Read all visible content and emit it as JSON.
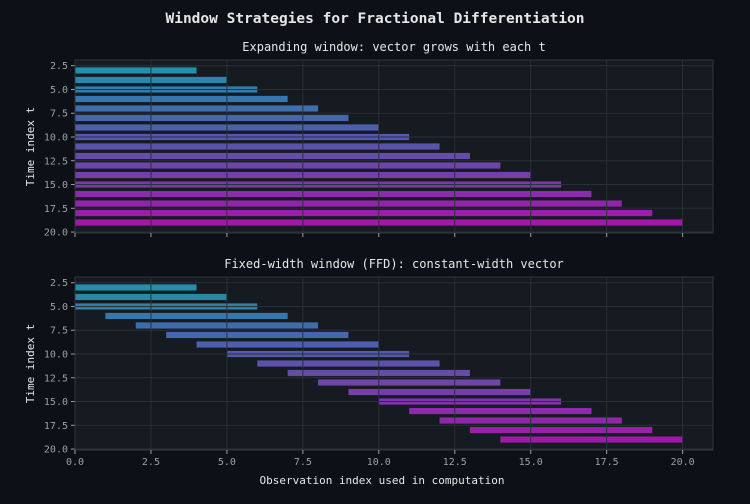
{
  "chart_data": {
    "suptitle": "Window Strategies for Fractional Differentiation",
    "colors": {
      "background": "#0d1117",
      "panel": "#161b22",
      "grid": "#2a3038",
      "text": "#e6e6e6",
      "tick": "#9aa0a6",
      "start": "#2190a8",
      "end": "#a218a8"
    },
    "panels": [
      {
        "type": "bar",
        "orientation": "horizontal-interval",
        "title": "Expanding window: vector grows with each t",
        "ylabel": "Time index t",
        "xlabel": "",
        "xlim": [
          0,
          21
        ],
        "ylim": [
          20.1,
          1.9
        ],
        "yticks": [
          "2.5",
          "5.0",
          "7.5",
          "10.0",
          "12.5",
          "15.0",
          "17.5",
          "20.0"
        ],
        "xticks": [],
        "t": [
          3,
          4,
          5,
          6,
          7,
          8,
          9,
          10,
          11,
          12,
          13,
          14,
          15,
          16,
          17,
          18,
          19
        ],
        "start": [
          0,
          0,
          0,
          0,
          0,
          0,
          0,
          0,
          0,
          0,
          0,
          0,
          0,
          0,
          0,
          0,
          0
        ],
        "end": [
          4,
          5,
          6,
          7,
          8,
          9,
          10,
          11,
          12,
          13,
          14,
          15,
          16,
          17,
          18,
          19,
          20
        ]
      },
      {
        "type": "bar",
        "orientation": "horizontal-interval",
        "title": "Fixed-width window (FFD): constant-width vector",
        "ylabel": "Time index t",
        "xlabel": "Observation index used in computation",
        "xlim": [
          0,
          21
        ],
        "ylim": [
          20.1,
          1.9
        ],
        "yticks": [
          "2.5",
          "5.0",
          "7.5",
          "10.0",
          "12.5",
          "15.0",
          "17.5",
          "20.0"
        ],
        "xticks": [
          "0.0",
          "2.5",
          "5.0",
          "7.5",
          "10.0",
          "12.5",
          "15.0",
          "17.5",
          "20.0"
        ],
        "t": [
          3,
          4,
          5,
          6,
          7,
          8,
          9,
          10,
          11,
          12,
          13,
          14,
          15,
          16,
          17,
          18,
          19
        ],
        "start": [
          0,
          0,
          0,
          1,
          2,
          3,
          4,
          5,
          6,
          7,
          8,
          9,
          10,
          11,
          12,
          13,
          14
        ],
        "end": [
          4,
          5,
          6,
          7,
          8,
          9,
          10,
          11,
          12,
          13,
          14,
          15,
          16,
          17,
          18,
          19,
          20
        ]
      }
    ]
  }
}
